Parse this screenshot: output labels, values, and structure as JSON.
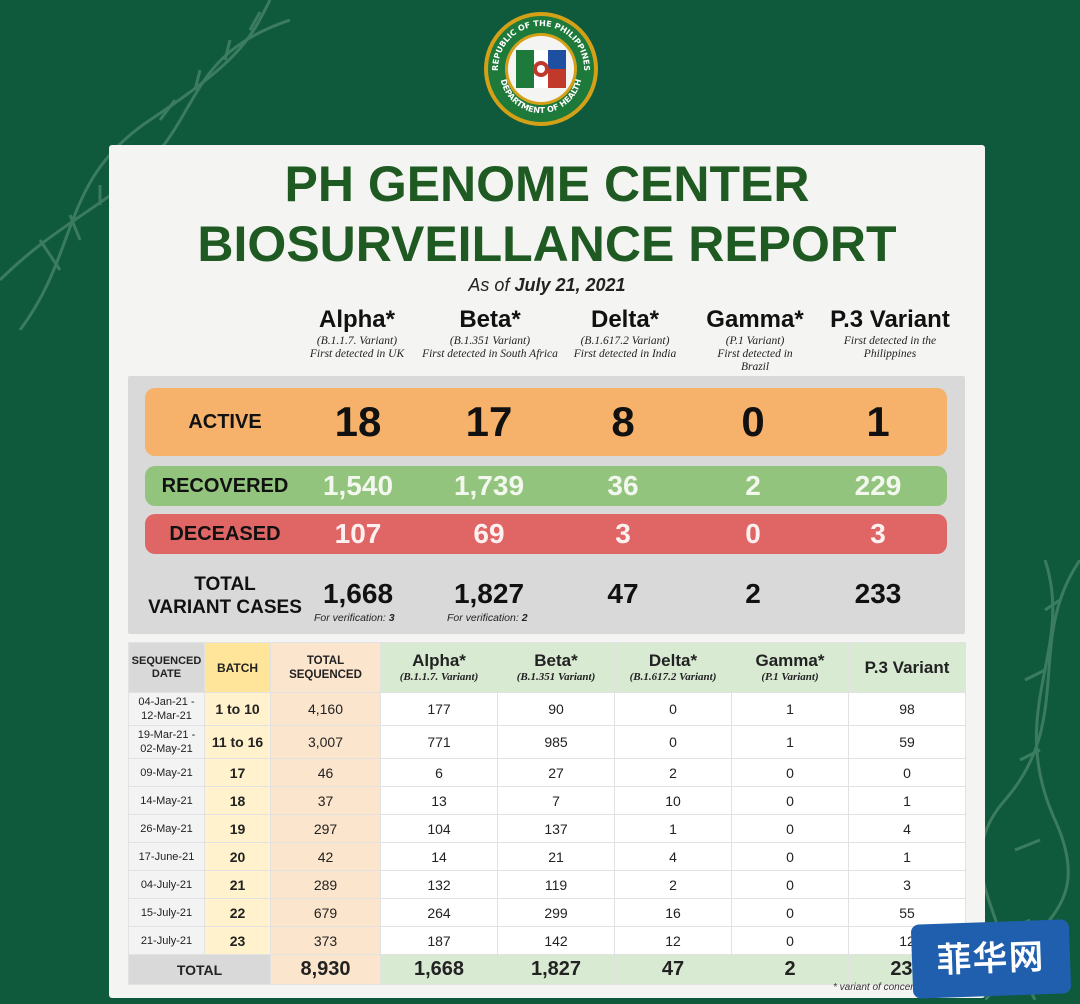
{
  "seal": {
    "text": "REPUBLIC OF THE PHILIPPINES DEPARTMENT OF HEALTH",
    "colors": {
      "ring": "#1e7a3a",
      "gold": "#d4a017",
      "red": "#c0392b",
      "blue": "#1f4fa0"
    }
  },
  "report": {
    "title_line1": "PH GENOME CENTER",
    "title_line2": "BIOSURVEILLANCE REPORT",
    "as_of_prefix": "As of",
    "as_of_date": "July 21, 2021"
  },
  "variants": [
    {
      "name": "Alpha*",
      "lineage": "(B.1.1.7. Variant)",
      "origin": "First detected in UK"
    },
    {
      "name": "Beta*",
      "lineage": "(B.1.351 Variant)",
      "origin": "First detected in South Africa"
    },
    {
      "name": "Delta*",
      "lineage": "(B.1.617.2 Variant)",
      "origin": "First detected in India"
    },
    {
      "name": "Gamma*",
      "lineage": "(P.1 Variant)",
      "origin": "First detected in Brazil"
    },
    {
      "name": "P.3 Variant",
      "lineage": "",
      "origin": "First detected in the Philippines"
    }
  ],
  "summary": {
    "active": {
      "label": "ACTIVE",
      "values": [
        "18",
        "17",
        "8",
        "0",
        "1"
      ]
    },
    "recovered": {
      "label": "RECOVERED",
      "values": [
        "1,540",
        "1,739",
        "36",
        "2",
        "229"
      ]
    },
    "deceased": {
      "label": "DECEASED",
      "values": [
        "107",
        "69",
        "3",
        "0",
        "3"
      ]
    },
    "total": {
      "label_line1": "TOTAL",
      "label_line2": "VARIANT CASES",
      "values": [
        "1,668",
        "1,827",
        "47",
        "2",
        "233"
      ],
      "verification_prefix": "For verification:",
      "alpha_verification": "3",
      "beta_verification": "2"
    }
  },
  "table": {
    "headers": {
      "date_line1": "SEQUENCED",
      "date_line2": "DATE",
      "batch": "BATCH",
      "total_line1": "TOTAL",
      "total_line2": "SEQUENCED"
    },
    "rows": [
      {
        "date1": "04-Jan-21 -",
        "date2": "12-Mar-21",
        "batch": "1 to 10",
        "total": "4,160",
        "alpha": "177",
        "beta": "90",
        "delta": "0",
        "gamma": "1",
        "p3": "98"
      },
      {
        "date1": "19-Mar-21 -",
        "date2": "02-May-21",
        "batch": "11 to 16",
        "total": "3,007",
        "alpha": "771",
        "beta": "985",
        "delta": "0",
        "gamma": "1",
        "p3": "59"
      },
      {
        "date1": "09-May-21",
        "date2": "",
        "batch": "17",
        "total": "46",
        "alpha": "6",
        "beta": "27",
        "delta": "2",
        "gamma": "0",
        "p3": "0"
      },
      {
        "date1": "14-May-21",
        "date2": "",
        "batch": "18",
        "total": "37",
        "alpha": "13",
        "beta": "7",
        "delta": "10",
        "gamma": "0",
        "p3": "1"
      },
      {
        "date1": "26-May-21",
        "date2": "",
        "batch": "19",
        "total": "297",
        "alpha": "104",
        "beta": "137",
        "delta": "1",
        "gamma": "0",
        "p3": "4"
      },
      {
        "date1": "17-June-21",
        "date2": "",
        "batch": "20",
        "total": "42",
        "alpha": "14",
        "beta": "21",
        "delta": "4",
        "gamma": "0",
        "p3": "1"
      },
      {
        "date1": "04-July-21",
        "date2": "",
        "batch": "21",
        "total": "289",
        "alpha": "132",
        "beta": "119",
        "delta": "2",
        "gamma": "0",
        "p3": "3"
      },
      {
        "date1": "15-July-21",
        "date2": "",
        "batch": "22",
        "total": "679",
        "alpha": "264",
        "beta": "299",
        "delta": "16",
        "gamma": "0",
        "p3": "55"
      },
      {
        "date1": "21-July-21",
        "date2": "",
        "batch": "23",
        "total": "373",
        "alpha": "187",
        "beta": "142",
        "delta": "12",
        "gamma": "0",
        "p3": "12"
      }
    ],
    "totals": {
      "label": "TOTAL",
      "total": "8,930",
      "alpha": "1,668",
      "beta": "1,827",
      "delta": "47",
      "gamma": "2",
      "p3": "233"
    },
    "footnote": "* variant of concern (VOC)"
  },
  "watermark": {
    "text": "菲华网",
    "color": "#1f5fae"
  }
}
